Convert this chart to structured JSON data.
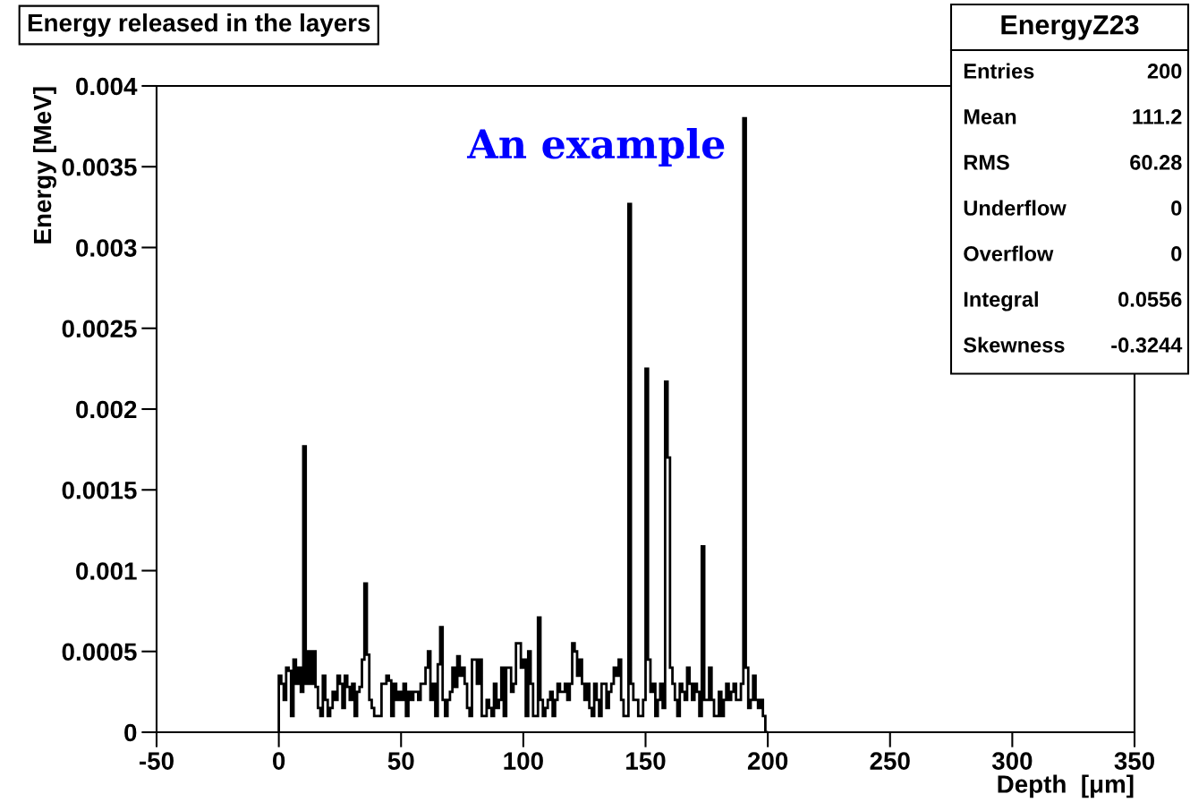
{
  "chart_data": {
    "type": "histogram",
    "title": "Energy released in the layers",
    "xlabel": "Depth  [μm]",
    "ylabel": "Energy [MeV]",
    "bins": [
      0,
      1,
      2,
      3,
      4,
      5,
      6,
      7,
      8,
      9,
      10,
      11,
      12,
      13,
      14,
      15,
      16,
      17,
      18,
      19,
      20,
      21,
      22,
      23,
      24,
      25,
      26,
      27,
      28,
      29,
      30,
      31,
      32,
      33,
      34,
      35,
      36,
      37,
      38,
      39,
      40,
      41,
      42,
      43,
      44,
      45,
      46,
      47,
      48,
      49,
      50,
      51,
      52,
      53,
      54,
      55,
      56,
      57,
      58,
      59,
      60,
      61,
      62,
      63,
      64,
      65,
      66,
      67,
      68,
      69,
      70,
      71,
      72,
      73,
      74,
      75,
      76,
      77,
      78,
      79,
      80,
      81,
      82,
      83,
      84,
      85,
      86,
      87,
      88,
      89,
      90,
      91,
      92,
      93,
      94,
      95,
      96,
      97,
      98,
      99,
      100,
      101,
      102,
      103,
      104,
      105,
      106,
      107,
      108,
      109,
      110,
      111,
      112,
      113,
      114,
      115,
      116,
      117,
      118,
      119,
      120,
      121,
      122,
      123,
      124,
      125,
      126,
      127,
      128,
      129,
      130,
      131,
      132,
      133,
      134,
      135,
      136,
      137,
      138,
      139,
      140,
      141,
      142,
      143,
      144,
      145,
      146,
      147,
      148,
      149,
      150,
      151,
      152,
      153,
      154,
      155,
      156,
      157,
      158,
      159,
      160,
      161,
      162,
      163,
      164,
      165,
      166,
      167,
      168,
      169,
      170,
      171,
      172,
      173,
      174,
      175,
      176,
      177,
      178,
      179,
      180,
      181,
      182,
      183,
      184,
      185,
      186,
      187,
      188,
      189,
      190,
      191,
      192,
      193,
      194,
      195,
      196,
      197,
      198,
      199,
      200
    ],
    "values": [
      0.00035,
      0.0003,
      0.0002,
      0.0004,
      0.00038,
      0.0001,
      0.00045,
      0.0003,
      0.0004,
      0.00025,
      0.00177,
      0.0003,
      0.0005,
      0.0003,
      0.0005,
      0.00028,
      0.00015,
      0.0001,
      0.00035,
      0.0002,
      0.0001,
      0.00015,
      0.00025,
      0.0002,
      0.00035,
      0.0003,
      0.00015,
      0.00035,
      0.00028,
      0.0002,
      0.0003,
      0.0001,
      0.00025,
      0.00028,
      0.00045,
      0.00092,
      0.00048,
      0.0002,
      0.00015,
      0.0001,
      0.0001,
      0.0001,
      0.0003,
      0.0003,
      0.00035,
      0.00032,
      0.0001,
      0.0003,
      0.0002,
      0.00025,
      0.0002,
      0.0003,
      0.0001,
      0.00025,
      0.0002,
      0.00025,
      0.00025,
      0.0002,
      0.0003,
      0.0003,
      0.0004,
      0.0005,
      0.0002,
      0.0003,
      0.0001,
      0.00042,
      0.00065,
      0.0002,
      0.0001,
      0.0002,
      0.00025,
      0.0004,
      0.00028,
      0.00047,
      0.00035,
      0.0004,
      0.0003,
      0.00015,
      0.0001,
      0.00045,
      0.00045,
      0.0003,
      0.00045,
      0.0001,
      0.0001,
      0.0002,
      0.00015,
      0.0001,
      0.0003,
      0.00015,
      0.0002,
      0.0004,
      0.0001,
      0.0004,
      0.0004,
      0.00025,
      0.0003,
      0.00055,
      0.00055,
      0.0004,
      0.00045,
      0.0001,
      0.0005,
      0.0003,
      0.0001,
      0.0001,
      0.00071,
      0.0002,
      0.0001,
      0.00015,
      0.0002,
      0.00025,
      0.0001,
      0.0002,
      0.0003,
      0.00025,
      0.00025,
      0.0003,
      0.0002,
      0.0003,
      0.00055,
      0.0005,
      0.00035,
      0.00045,
      0.0003,
      0.0002,
      0.0003,
      0.00015,
      0.0001,
      0.0003,
      0.0002,
      0.0001,
      0.0003,
      0.0003,
      0.00015,
      0.00025,
      0.0003,
      0.0004,
      0.00035,
      0.00045,
      0.0002,
      0.0001,
      0.0001,
      0.00327,
      0.0003,
      0.0002,
      0.0002,
      0.0001,
      0.0001,
      0.0002,
      0.00225,
      0.00045,
      0.00025,
      0.0003,
      0.0001,
      0.0002,
      0.0003,
      0.00015,
      0.00217,
      0.0017,
      0.0004,
      0.0003,
      0.0002,
      0.0001,
      0.0003,
      0.00025,
      0.0002,
      0.0004,
      0.0003,
      0.0002,
      0.0003,
      0.00025,
      0.0001,
      0.00115,
      0.0002,
      0.0002,
      0.0004,
      0.0002,
      0.0001,
      0.0001,
      0.00025,
      0.0001,
      0.0002,
      0.0003,
      0.0002,
      0.00025,
      0.0003,
      0.0002,
      0.0002,
      0.0003,
      0.0038,
      0.0004,
      0.00015,
      0.0002,
      0.00035,
      0.0002,
      0.00015,
      0.0002,
      0.0001,
      0.0
    ],
    "color": "#000000",
    "xlim": [
      -50,
      350
    ],
    "xticks": [
      -50,
      0,
      50,
      100,
      150,
      200,
      250,
      300,
      350
    ],
    "ylim": [
      0,
      0.004
    ],
    "yticks": [
      0,
      0.0005,
      0.001,
      0.0015,
      0.002,
      0.0025,
      0.003,
      0.0035,
      0.004
    ],
    "grid": false,
    "annotations": [
      "An example",
      "EnergyZ23",
      "Entries 200",
      "Mean 111.2",
      "RMS 60.28",
      "Underflow 0",
      "Overflow 0",
      "Integral 0.0556",
      "Skewness -0.3244"
    ]
  }
}
